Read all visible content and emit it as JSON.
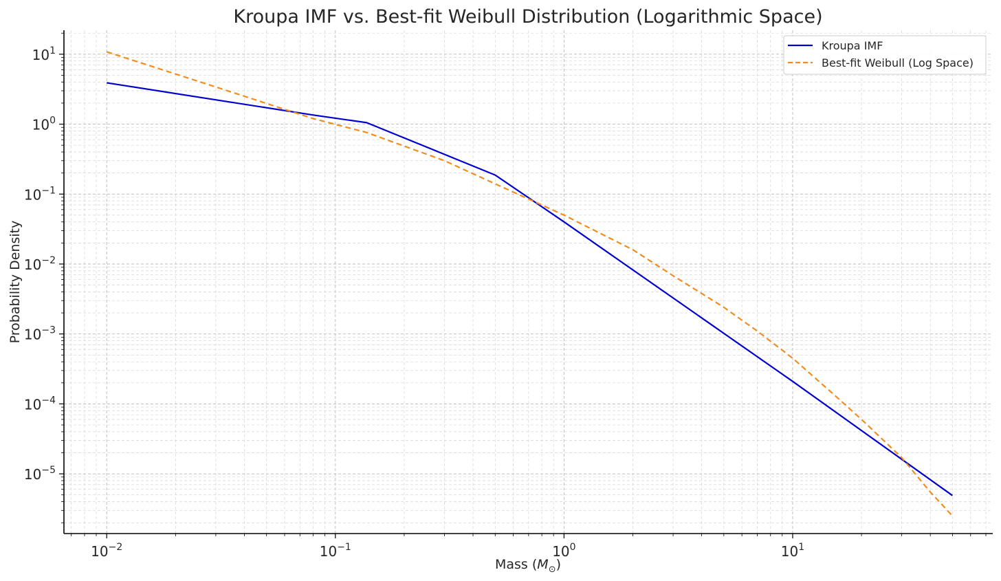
{
  "chart_data": {
    "type": "line",
    "title": "Kroupa IMF vs. Best-fit Weibull Distribution (Logarithmic Space)",
    "xlabel": "Mass (M☉)",
    "xlabel_parts": {
      "prefix": "Mass (",
      "symbol": "M",
      "subscript": "⊙",
      "suffix": ")"
    },
    "ylabel": "Probability Density",
    "x_scale": "log",
    "y_scale": "log",
    "xlim": [
      0.0065,
      75
    ],
    "ylim": [
      1.4e-06,
      22
    ],
    "x_ticks": [
      {
        "value": 0.01,
        "base": "10",
        "exp": "−2"
      },
      {
        "value": 0.1,
        "base": "10",
        "exp": "−1"
      },
      {
        "value": 1,
        "base": "10",
        "exp": "0"
      },
      {
        "value": 10,
        "base": "10",
        "exp": "1"
      }
    ],
    "y_ticks": [
      {
        "value": 10,
        "base": "10",
        "exp": "1"
      },
      {
        "value": 1,
        "base": "10",
        "exp": "0"
      },
      {
        "value": 0.1,
        "base": "10",
        "exp": "−1"
      },
      {
        "value": 0.01,
        "base": "10",
        "exp": "−2"
      },
      {
        "value": 0.001,
        "base": "10",
        "exp": "−3"
      },
      {
        "value": 0.0001,
        "base": "10",
        "exp": "−4"
      },
      {
        "value": 1e-05,
        "base": "10",
        "exp": "−5"
      }
    ],
    "grid": "major and minor, dashed",
    "legend_position": "top-right",
    "series": [
      {
        "name": "Kroupa IMF",
        "color": "#0000cd",
        "style": "solid",
        "x": [
          0.01,
          0.08,
          0.137,
          0.5,
          1,
          10,
          50
        ],
        "y": [
          3.9,
          1.35,
          1.05,
          0.187,
          0.04,
          0.00021,
          4.9e-06
        ]
      },
      {
        "name": "Best-fit Weibull (Log Space)",
        "color": "#f28c1e",
        "style": "dashed",
        "x": [
          0.01,
          0.03,
          0.08,
          0.137,
          0.3,
          0.5,
          1,
          2,
          3,
          5,
          7,
          10,
          15,
          20,
          30,
          40,
          50
        ],
        "y": [
          10.8,
          3.4,
          1.2,
          0.76,
          0.3,
          0.14,
          0.05,
          0.016,
          0.0068,
          0.0024,
          0.0011,
          0.00045,
          0.00014,
          6e-05,
          1.7e-05,
          5.5e-06,
          2.5e-06
        ]
      }
    ]
  }
}
